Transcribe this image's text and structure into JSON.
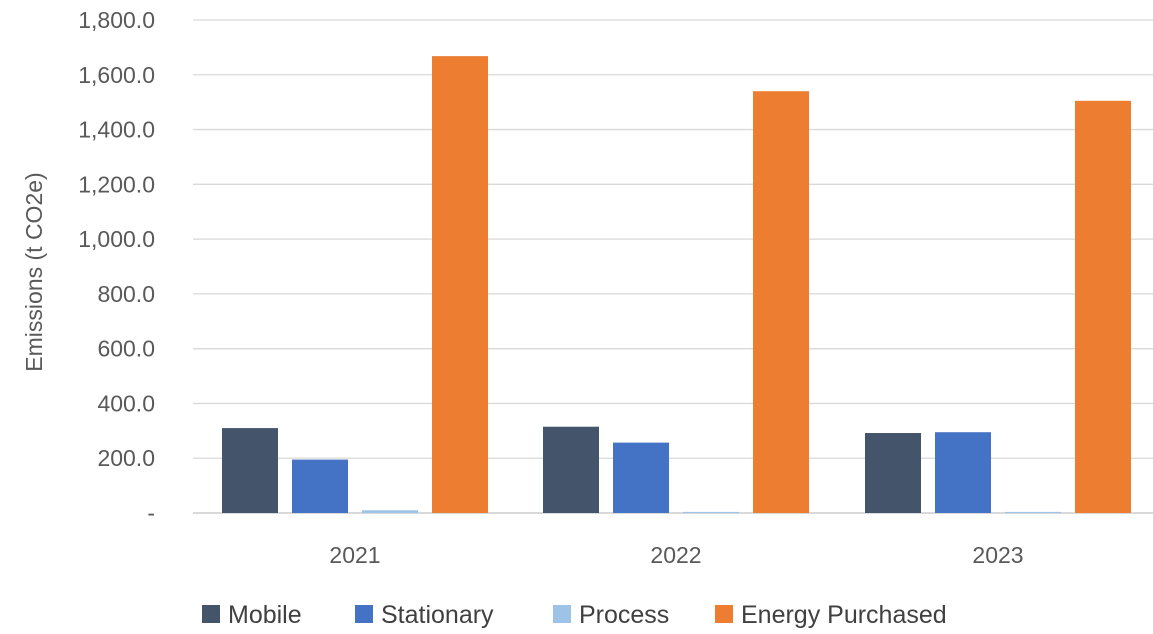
{
  "chart_data": {
    "type": "bar",
    "categories": [
      "2021",
      "2022",
      "2023"
    ],
    "series": [
      {
        "name": "Mobile",
        "color": "#44546a",
        "values": [
          310,
          315,
          292
        ]
      },
      {
        "name": "Stationary",
        "color": "#4472c4",
        "values": [
          195,
          257,
          295
        ]
      },
      {
        "name": "Process",
        "color": "#9dc3e6",
        "values": [
          10,
          4,
          4
        ]
      },
      {
        "name": "Energy Purchased",
        "color": "#ed7d31",
        "values": [
          1668,
          1540,
          1505
        ]
      }
    ],
    "title": "",
    "xlabel": "",
    "ylabel": "Emissions (t CO2e)",
    "ylim": [
      0,
      1800
    ],
    "yticks": [
      0,
      200,
      400,
      600,
      800,
      1000,
      1200,
      1400,
      1600,
      1800
    ],
    "ytick_labels": [
      "-",
      "200.0",
      "400.0",
      "600.0",
      "800.0",
      "1,000.0",
      "1,200.0",
      "1,400.0",
      "1,600.0",
      "1,800.0"
    ],
    "grid": true,
    "legend_position": "bottom",
    "gridline_color": "#d9d9d9",
    "axis_color": "#d9d9d9"
  }
}
